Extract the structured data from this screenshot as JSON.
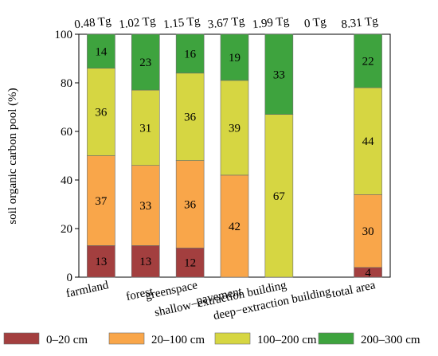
{
  "chart_data": {
    "type": "bar",
    "stacked": true,
    "ylabel": "soil organic carbon pool (%)",
    "ylim": [
      0,
      100
    ],
    "yticks": [
      0,
      20,
      40,
      60,
      80,
      100
    ],
    "grid": false,
    "legend_position": "bottom",
    "categories": [
      "farmland",
      "forest",
      "greenspace",
      "pavement",
      "shallow−extraction building",
      "deep−extraction building",
      "total area"
    ],
    "totals": [
      "0.48 Tg",
      "1.02 Tg",
      "1.15 Tg",
      "3.67 Tg",
      "1.99 Tg",
      "0 Tg",
      "8.31 Tg"
    ],
    "series": [
      {
        "name": "0–20 cm",
        "color": "#a33f3f",
        "values": [
          13,
          13,
          12,
          0,
          0,
          0,
          4
        ],
        "labels": [
          "13",
          "13",
          "12",
          "",
          "",
          "",
          "4"
        ]
      },
      {
        "name": "20–100 cm",
        "color": "#f9a64a",
        "values": [
          37,
          33,
          36,
          42,
          0,
          0,
          30
        ],
        "labels": [
          "37",
          "33",
          "36",
          "42",
          "",
          "",
          "30"
        ]
      },
      {
        "name": "100–200 cm",
        "color": "#d6d642",
        "values": [
          36,
          31,
          36,
          39,
          67,
          0,
          44
        ],
        "labels": [
          "36",
          "31",
          "36",
          "39",
          "67",
          "",
          "44"
        ]
      },
      {
        "name": "200–300 cm",
        "color": "#3ea33e",
        "values": [
          14,
          23,
          16,
          19,
          33,
          0,
          22
        ],
        "labels": [
          "14",
          "23",
          "16",
          "19",
          "33",
          "",
          "22"
        ]
      }
    ]
  }
}
